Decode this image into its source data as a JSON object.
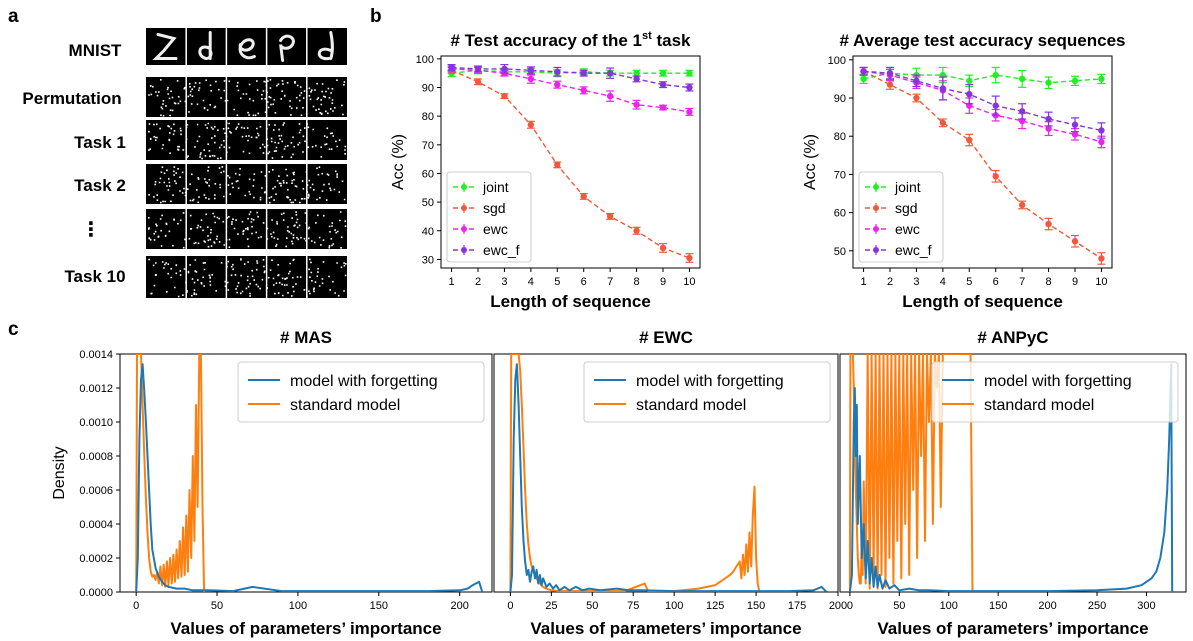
{
  "panels": {
    "a": {
      "letter": "a",
      "rows": [
        "MNIST",
        "Permutation",
        "Task 1",
        "Task 2",
        "⋮",
        "Task 10"
      ]
    },
    "b": {
      "letter": "b"
    },
    "c": {
      "letter": "c"
    }
  },
  "colors": {
    "joint": "#22ee22",
    "sgd": "#f05a3c",
    "ewc": "#ee22ee",
    "ewc_f": "#8833dd",
    "forgetting": "#1f77b4",
    "standard": "#ff7f0e"
  },
  "chart_data": [
    {
      "type": "line",
      "title": "# Test accuracy of the 1",
      "title_sup": "st",
      "title_suffix": " task",
      "xlabel": "Length of sequence",
      "ylabel": "Acc (%)",
      "x": [
        1,
        2,
        3,
        4,
        5,
        6,
        7,
        8,
        9,
        10
      ],
      "xlim": [
        0.6,
        10.4
      ],
      "ylim": [
        27,
        101
      ],
      "yticks": [
        30,
        40,
        50,
        60,
        70,
        80,
        90,
        100
      ],
      "legend_loc": "lower-left",
      "series": [
        {
          "name": "joint",
          "values": [
            95,
            96,
            95.5,
            95.5,
            95,
            95.5,
            95,
            95,
            95,
            95
          ],
          "err": [
            1.2,
            1.2,
            1.2,
            1.2,
            1.2,
            1,
            1,
            1,
            1,
            1
          ]
        },
        {
          "name": "sgd",
          "values": [
            96,
            92,
            87,
            77,
            63,
            52,
            45,
            40,
            34,
            30.5
          ],
          "err": [
            1,
            1,
            0.8,
            1.2,
            1,
            1,
            1,
            1.2,
            1.5,
            1.5
          ]
        },
        {
          "name": "ewc",
          "values": [
            96.5,
            96,
            95,
            93,
            91,
            89,
            87,
            84,
            83,
            81.5
          ],
          "err": [
            1,
            1,
            1,
            1.5,
            1.2,
            1.2,
            1.8,
            1.5,
            0.8,
            1.2
          ]
        },
        {
          "name": "ewc_f",
          "values": [
            97,
            96.5,
            96.5,
            96,
            95.5,
            95,
            95,
            93,
            91,
            90
          ],
          "err": [
            1,
            1,
            1.5,
            1.2,
            1.5,
            1,
            1.8,
            1,
            1,
            1.2
          ]
        }
      ]
    },
    {
      "type": "line",
      "title": "# Average test accuracy sequences",
      "xlabel": "Length of sequence",
      "ylabel": "Acc (%)",
      "x": [
        1,
        2,
        3,
        4,
        5,
        6,
        7,
        8,
        9,
        10
      ],
      "xlim": [
        0.6,
        10.4
      ],
      "ylim": [
        45.5,
        101
      ],
      "yticks": [
        50,
        60,
        70,
        80,
        90,
        100
      ],
      "legend_loc": "lower-left",
      "series": [
        {
          "name": "joint",
          "values": [
            95,
            96.5,
            96,
            96,
            94.5,
            96,
            95,
            94,
            94.5,
            95
          ],
          "err": [
            1.2,
            1.5,
            1.8,
            2,
            1.5,
            2,
            2.2,
            1.5,
            1.2,
            1.2
          ]
        },
        {
          "name": "sgd",
          "values": [
            97,
            93.5,
            90,
            83.5,
            79,
            69.5,
            62,
            57,
            52.5,
            48
          ],
          "err": [
            1,
            1.2,
            1,
            1,
            1.5,
            1.5,
            1,
            1.5,
            1.5,
            1.5
          ]
        },
        {
          "name": "ewc",
          "values": [
            97,
            96,
            94,
            92,
            88,
            85.5,
            84,
            82,
            80.5,
            78.5
          ],
          "err": [
            1,
            1.5,
            1.5,
            2.5,
            2,
            1.5,
            2,
            1.8,
            1.5,
            1.5
          ]
        },
        {
          "name": "ewc_f",
          "values": [
            97,
            96.5,
            94.5,
            92.5,
            91,
            88,
            86.5,
            84.5,
            83,
            81.5
          ],
          "err": [
            1,
            1.5,
            1.5,
            3,
            2.5,
            2.5,
            2,
            1.8,
            1.8,
            2
          ]
        }
      ]
    },
    {
      "type": "line",
      "title": "# MAS",
      "xlabel": "Values of parameters’ importance",
      "ylabel": "Density",
      "xlim": [
        -10,
        220
      ],
      "ylim": [
        0,
        0.0014
      ],
      "xticks": [
        0,
        50,
        100,
        150,
        200
      ],
      "yticks": [
        0,
        0.0002,
        0.0004,
        0.0006,
        0.0008,
        0.001,
        0.0012,
        0.0014
      ],
      "ytick_labels": [
        "0.0000",
        "0.0002",
        "0.0004",
        "0.0006",
        "0.0008",
        "0.0010",
        "0.0012",
        "0.0014"
      ],
      "legend_loc": "upper-right",
      "series": [
        {
          "name": "model with forgetting",
          "x": [
            0,
            1,
            2,
            3,
            4,
            5,
            6,
            7,
            8,
            9,
            10,
            12,
            14,
            16,
            18,
            20,
            25,
            30,
            35,
            40,
            45,
            60,
            72,
            90,
            120,
            150,
            180,
            200,
            205,
            208,
            210,
            212,
            214
          ],
          "values": [
            0,
            0.0002,
            0.0009,
            0.00125,
            0.00134,
            0.00118,
            0.001,
            0.0008,
            0.0006,
            0.0004,
            0.00025,
            0.00014,
            9e-05,
            6e-05,
            4e-05,
            3e-05,
            2e-05,
            2e-05,
            1e-05,
            1e-05,
            1e-05,
            5e-06,
            3e-05,
            5e-06,
            5e-06,
            5e-06,
            5e-06,
            1e-05,
            2e-05,
            4e-05,
            5e-05,
            6e-05,
            0
          ]
        },
        {
          "name": "standard model",
          "x": [
            0,
            0.5,
            1,
            2,
            3,
            4,
            5,
            6,
            7,
            8,
            9,
            10,
            11,
            12,
            13,
            14,
            15,
            16,
            17,
            18,
            19,
            20,
            21,
            22,
            23,
            24,
            25,
            26,
            27,
            28,
            29,
            30,
            31,
            32,
            33,
            34,
            35,
            36,
            37,
            38,
            39,
            40,
            41,
            42
          ],
          "values": [
            0,
            0.0014,
            0.0014,
            0.0014,
            0.0014,
            0.0011,
            0.0008,
            0.00055,
            0.00035,
            0.0002,
            0.00012,
            9e-05,
            0.0001,
            7e-05,
            0.00012,
            5e-05,
            0.00015,
            4e-05,
            0.00016,
            3e-05,
            0.00018,
            4e-05,
            0.0002,
            5e-05,
            0.00022,
            6e-05,
            0.00025,
            8e-05,
            0.0003,
            9e-05,
            0.00038,
            0.0001,
            0.00045,
            0.00012,
            0.0006,
            0.0002,
            0.0008,
            0.0003,
            0.0011,
            0.0005,
            0.0014,
            0.0014,
            0.0005,
            0
          ]
        }
      ]
    },
    {
      "type": "line",
      "title": "# EWC",
      "xlabel": "Values of parameters’ importance",
      "ylabel": "",
      "xlim": [
        -10,
        200
      ],
      "ylim": [
        0,
        0.0014
      ],
      "xticks": [
        0,
        25,
        50,
        75,
        100,
        125,
        150,
        175,
        200
      ],
      "legend_loc": "upper-right",
      "series": [
        {
          "name": "model with forgetting",
          "x": [
            0,
            1,
            2,
            3,
            4,
            5,
            6,
            7,
            8,
            9,
            10,
            11,
            12,
            13,
            14,
            15,
            16,
            17,
            18,
            19,
            20,
            22,
            24,
            26,
            28,
            30,
            33,
            36,
            40,
            44,
            48,
            55,
            65,
            72,
            80,
            100,
            130,
            150,
            170,
            185,
            190,
            193
          ],
          "values": [
            0,
            0.0001,
            0.0009,
            0.00125,
            0.00134,
            0.0011,
            0.0008,
            0.0005,
            0.0003,
            0.00018,
            0.0001,
            0.00013,
            6e-05,
            0.00012,
            0.00015,
            8e-05,
            0.00013,
            5e-05,
            0.0001,
            4e-05,
            8e-05,
            3e-05,
            5e-05,
            2e-05,
            4e-05,
            1e-05,
            3e-05,
            1e-05,
            3e-05,
            1e-05,
            2e-05,
            1e-05,
            2e-05,
            1e-05,
            1e-05,
            5e-06,
            5e-06,
            5e-06,
            5e-06,
            1e-05,
            3e-05,
            0
          ]
        },
        {
          "name": "standard model",
          "x": [
            0,
            0.5,
            1,
            2,
            3,
            4,
            5,
            6,
            7,
            8,
            9,
            10,
            11,
            12,
            13,
            14,
            15,
            16,
            18,
            20,
            22,
            25,
            30,
            50,
            70,
            82,
            84,
            100,
            115,
            120,
            125,
            128,
            131,
            134,
            136,
            138,
            140,
            141,
            142,
            143,
            144,
            145,
            146,
            147,
            148,
            149,
            150,
            151,
            152
          ],
          "values": [
            0,
            0.0014,
            0.0014,
            0.0014,
            0.0014,
            0.0014,
            0.0014,
            0.0013,
            0.0011,
            0.00085,
            0.0006,
            0.0004,
            0.00028,
            0.0002,
            0.00015,
            0.00012,
            0.0001,
            8e-05,
            5e-05,
            3e-05,
            2e-05,
            1e-05,
            5e-06,
            5e-06,
            5e-06,
            5e-05,
            5e-06,
            5e-06,
            2e-05,
            3e-05,
            4e-05,
            6e-05,
            8e-05,
            0.0001,
            0.00012,
            0.00015,
            0.00018,
            8e-05,
            0.00022,
            0.0001,
            0.00028,
            0.00012,
            0.00035,
            0.00015,
            0.00045,
            0.00062,
            0.0002,
            5e-05,
            0
          ]
        }
      ]
    },
    {
      "type": "line",
      "title": "# ANPyC",
      "xlabel": "Values of parameters’ importance",
      "ylabel": "",
      "xlim": [
        -10,
        340
      ],
      "ylim": [
        0,
        0.0014
      ],
      "xticks": [
        0,
        50,
        100,
        150,
        200,
        250,
        300
      ],
      "legend_loc": "upper-right",
      "series": [
        {
          "name": "model with forgetting",
          "x": [
            0,
            2,
            4,
            5,
            6,
            7,
            8,
            10,
            12,
            14,
            16,
            18,
            20,
            22,
            24,
            26,
            28,
            30,
            33,
            36,
            40,
            45,
            50,
            60,
            70,
            80,
            100,
            150,
            200,
            250,
            280,
            295,
            305,
            310,
            314,
            318,
            321,
            323,
            325,
            326
          ],
          "values": [
            0,
            0.0001,
            0.001,
            0.0012,
            0.0008,
            0.0011,
            0.0004,
            0.0008,
            0.0002,
            0.0004,
            8e-05,
            0.0003,
            5e-05,
            0.0002,
            3e-05,
            0.00015,
            3e-05,
            0.0001,
            2e-05,
            7e-05,
            2e-05,
            4e-05,
            1e-05,
            2e-05,
            1e-05,
            1e-05,
            5e-06,
            5e-06,
            5e-06,
            1e-05,
            2e-05,
            4e-05,
            8e-05,
            0.00012,
            0.0002,
            0.00035,
            0.0006,
            0.0009,
            0.00134,
            0
          ]
        },
        {
          "name": "standard model",
          "x": [
            0,
            0.5,
            1,
            2,
            3,
            4,
            5,
            6,
            7,
            8,
            9,
            10,
            11,
            12,
            13,
            14,
            16,
            18,
            20,
            22,
            24,
            26,
            28,
            30,
            32,
            34,
            36,
            38,
            40,
            42,
            44,
            46,
            48,
            50,
            52,
            54,
            56,
            58,
            60,
            62,
            64,
            66,
            68,
            70,
            72,
            74,
            76,
            78,
            80,
            82,
            84,
            86,
            88,
            90,
            92,
            94,
            96,
            98,
            100,
            102,
            104,
            106,
            108,
            110,
            112,
            114,
            116,
            118,
            120,
            122,
            124
          ],
          "values": [
            0,
            0.0014,
            0.0014,
            0.0014,
            0.0014,
            0.0012,
            0.0009,
            0.0006,
            0.0004,
            0.0002,
            0.0001,
            5e-05,
            5e-05,
            0.0003,
            0.0001,
            0.00065,
            5e-05,
            0.0014,
            2e-05,
            0.0014,
            0.0001,
            0.0014,
            2e-05,
            0.0014,
            0.0001,
            0.0014,
            3e-05,
            0.0014,
            0.0002,
            0.0014,
            5e-05,
            0.0014,
            0.0003,
            0.0014,
            8e-05,
            0.0014,
            0.0004,
            0.0014,
            0.0001,
            0.0014,
            0.0006,
            0.0014,
            0.0002,
            0.0014,
            0.0008,
            0.0014,
            0.0003,
            0.0014,
            0.001,
            0.0014,
            0.0004,
            0.0014,
            0.0012,
            0.0014,
            0.0005,
            0.0014,
            0.0014,
            0.0014,
            0.0014,
            0.0014,
            0.0014,
            0.0014,
            0.0014,
            0.0014,
            0.0014,
            0.0014,
            0.0014,
            0.0014,
            0.0014,
            0.0014,
            0
          ]
        }
      ]
    }
  ]
}
